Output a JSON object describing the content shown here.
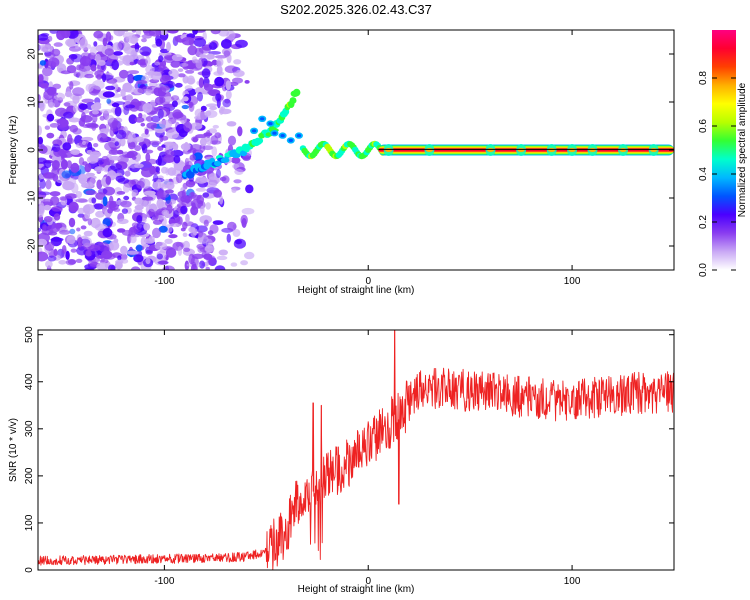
{
  "figure_title": "S202.2025.326.02.43.C37",
  "chart_data": [
    {
      "type": "heatmap",
      "title": "S202.2025.326.02.43.C37",
      "xlabel": "Height of straight line (km)",
      "ylabel": "Frequency (Hz)",
      "xlim": [
        -162,
        150
      ],
      "ylim": [
        -25,
        25
      ],
      "xticks": [
        -100,
        0,
        100
      ],
      "yticks": [
        -20,
        -10,
        0,
        10,
        20
      ],
      "colorbar": {
        "label": "Normalized spectral amplitude",
        "range": [
          0.0,
          1.0
        ],
        "ticks": [
          0.0,
          0.2,
          0.4,
          0.6,
          0.8
        ],
        "tick_labels": [
          "0.0",
          "0.2",
          "0.4",
          "0.6",
          "0.8"
        ],
        "colors": [
          "#ffffff",
          "#c9a8f5",
          "#8a3df0",
          "#4b00ff",
          "#0055ff",
          "#00b8ff",
          "#00ffcc",
          "#33ff33",
          "#b7ff00",
          "#ffff00",
          "#ffb000",
          "#ff4000",
          "#ff0030",
          "#ff0080"
        ]
      },
      "features": {
        "noise_region_x": [
          -162,
          -60
        ],
        "diagonal_trace": {
          "x": [
            -90,
            -60,
            -45,
            -35
          ],
          "y": [
            -5,
            0,
            5,
            12
          ]
        },
        "tonal_line": {
          "x": [
            -30,
            150
          ],
          "y": 0,
          "amplitude": 0.9
        }
      }
    },
    {
      "type": "line",
      "title": "",
      "xlabel": "Height of straight line (km)",
      "ylabel": "SNR (10 * v/v)",
      "xlim": [
        -162,
        150
      ],
      "ylim": [
        0,
        510
      ],
      "xticks": [
        -100,
        0,
        100
      ],
      "yticks": [
        0,
        100,
        200,
        300,
        400,
        500
      ],
      "series": [
        {
          "name": "SNR",
          "color": "#ee2222",
          "envelope": {
            "x": [
              -162,
              -120,
              -80,
              -60,
              -50,
              -40,
              -35,
              -32,
              -28,
              -25,
              -20,
              -15,
              -10,
              -5,
              0,
              5,
              10,
              13,
              15,
              20,
              25,
              30,
              40,
              50,
              60,
              70,
              80,
              90,
              100,
              110,
              120,
              130,
              140,
              150
            ],
            "y": [
              20,
              22,
              25,
              28,
              40,
              80,
              150,
              140,
              170,
              160,
              200,
              215,
              230,
              250,
              270,
              290,
              300,
              330,
              320,
              360,
              380,
              385,
              385,
              380,
              375,
              370,
              365,
              360,
              362,
              365,
              370,
              375,
              378,
              380
            ]
          },
          "spikes": [
            {
              "x": -27,
              "y": 355
            },
            {
              "x": -23,
              "y": 350
            },
            {
              "x": 13,
              "y": 510
            },
            {
              "x": 15,
              "y": 140
            }
          ]
        }
      ]
    }
  ]
}
